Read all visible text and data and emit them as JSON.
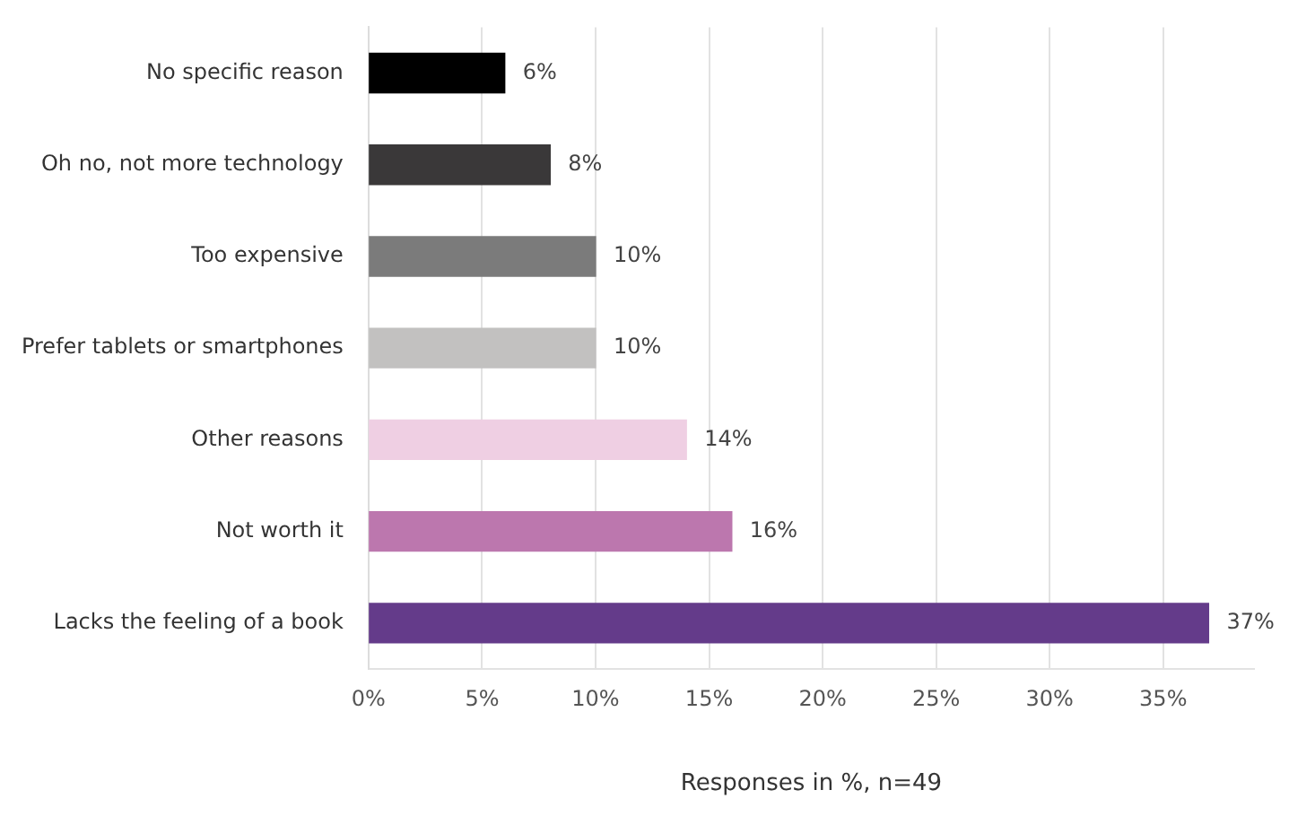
{
  "chart_data": {
    "type": "bar",
    "orientation": "horizontal",
    "xlabel": "Responses in %, n=49",
    "categories": [
      "No specific reason",
      "Oh no, not more technology",
      "Too expensive",
      "Prefer tablets or smartphones",
      "Other reasons",
      "Not worth it",
      "Lacks the feeling of a book"
    ],
    "values": [
      6,
      8,
      10,
      10,
      14,
      16,
      37
    ],
    "colors": [
      "#000000",
      "#3a3839",
      "#7b7b7b",
      "#c2c1c0",
      "#efcfe3",
      "#bc77ae",
      "#643b8a"
    ],
    "xlim": [
      0,
      39
    ],
    "xticks": [
      {
        "value": 0,
        "label": "0%"
      },
      {
        "value": 5,
        "label": "5%"
      },
      {
        "value": 10,
        "label": "10%"
      },
      {
        "value": 15,
        "label": "15%"
      },
      {
        "value": 20,
        "label": "20%"
      },
      {
        "value": 25,
        "label": "25%"
      },
      {
        "value": 30,
        "label": "30%"
      },
      {
        "value": 35,
        "label": "35%"
      }
    ],
    "grid": "x",
    "legend": false,
    "value_labels": [
      "6%",
      "8%",
      "10%",
      "10%",
      "14%",
      "16%",
      "37%"
    ]
  }
}
